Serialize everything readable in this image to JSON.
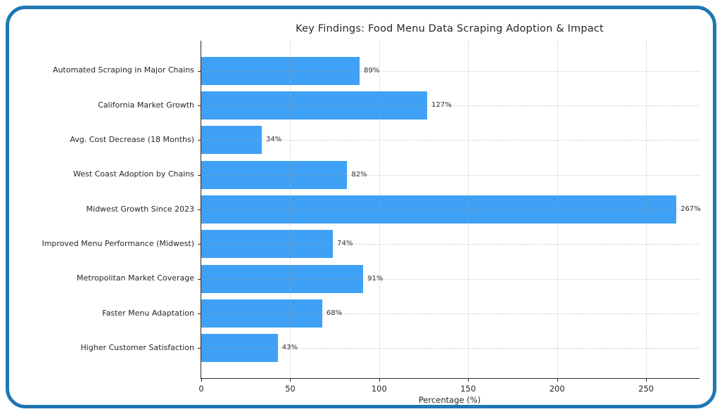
{
  "figure": {
    "background": "#ffffff",
    "frame_border_color": "#1f77b4"
  },
  "chart_data": {
    "type": "bar",
    "orientation": "horizontal",
    "title": "Key Findings: Food Menu Data Scraping Adoption & Impact",
    "xlabel": "Percentage (%)",
    "ylabel": "",
    "categories": [
      "Automated Scraping in Major Chains",
      "California Market Growth",
      "Avg. Cost Decrease (18 Months)",
      "West Coast Adoption by Chains",
      "Midwest Growth Since 2023",
      "Improved Menu Performance (Midwest)",
      "Metropolitan Market Coverage",
      "Faster Menu Adaptation",
      "Higher Customer Satisfaction"
    ],
    "values": [
      89,
      127,
      34,
      82,
      267,
      74,
      91,
      68,
      43
    ],
    "value_labels": [
      "89%",
      "127%",
      "34%",
      "82%",
      "267%",
      "74%",
      "91%",
      "68%",
      "43%"
    ],
    "xticks": [
      0,
      50,
      100,
      150,
      200,
      250
    ],
    "xtick_labels": [
      "0",
      "50",
      "100",
      "150",
      "200",
      "250"
    ],
    "xlim": [
      0,
      280
    ],
    "grid": {
      "style": "dotted",
      "horizontal": true,
      "vertical": true,
      "color": "#a0a0a0"
    },
    "bar_color": "#3fa1f5",
    "axis_color": "#262626",
    "text_color": "#262626",
    "legend_position": "none"
  }
}
